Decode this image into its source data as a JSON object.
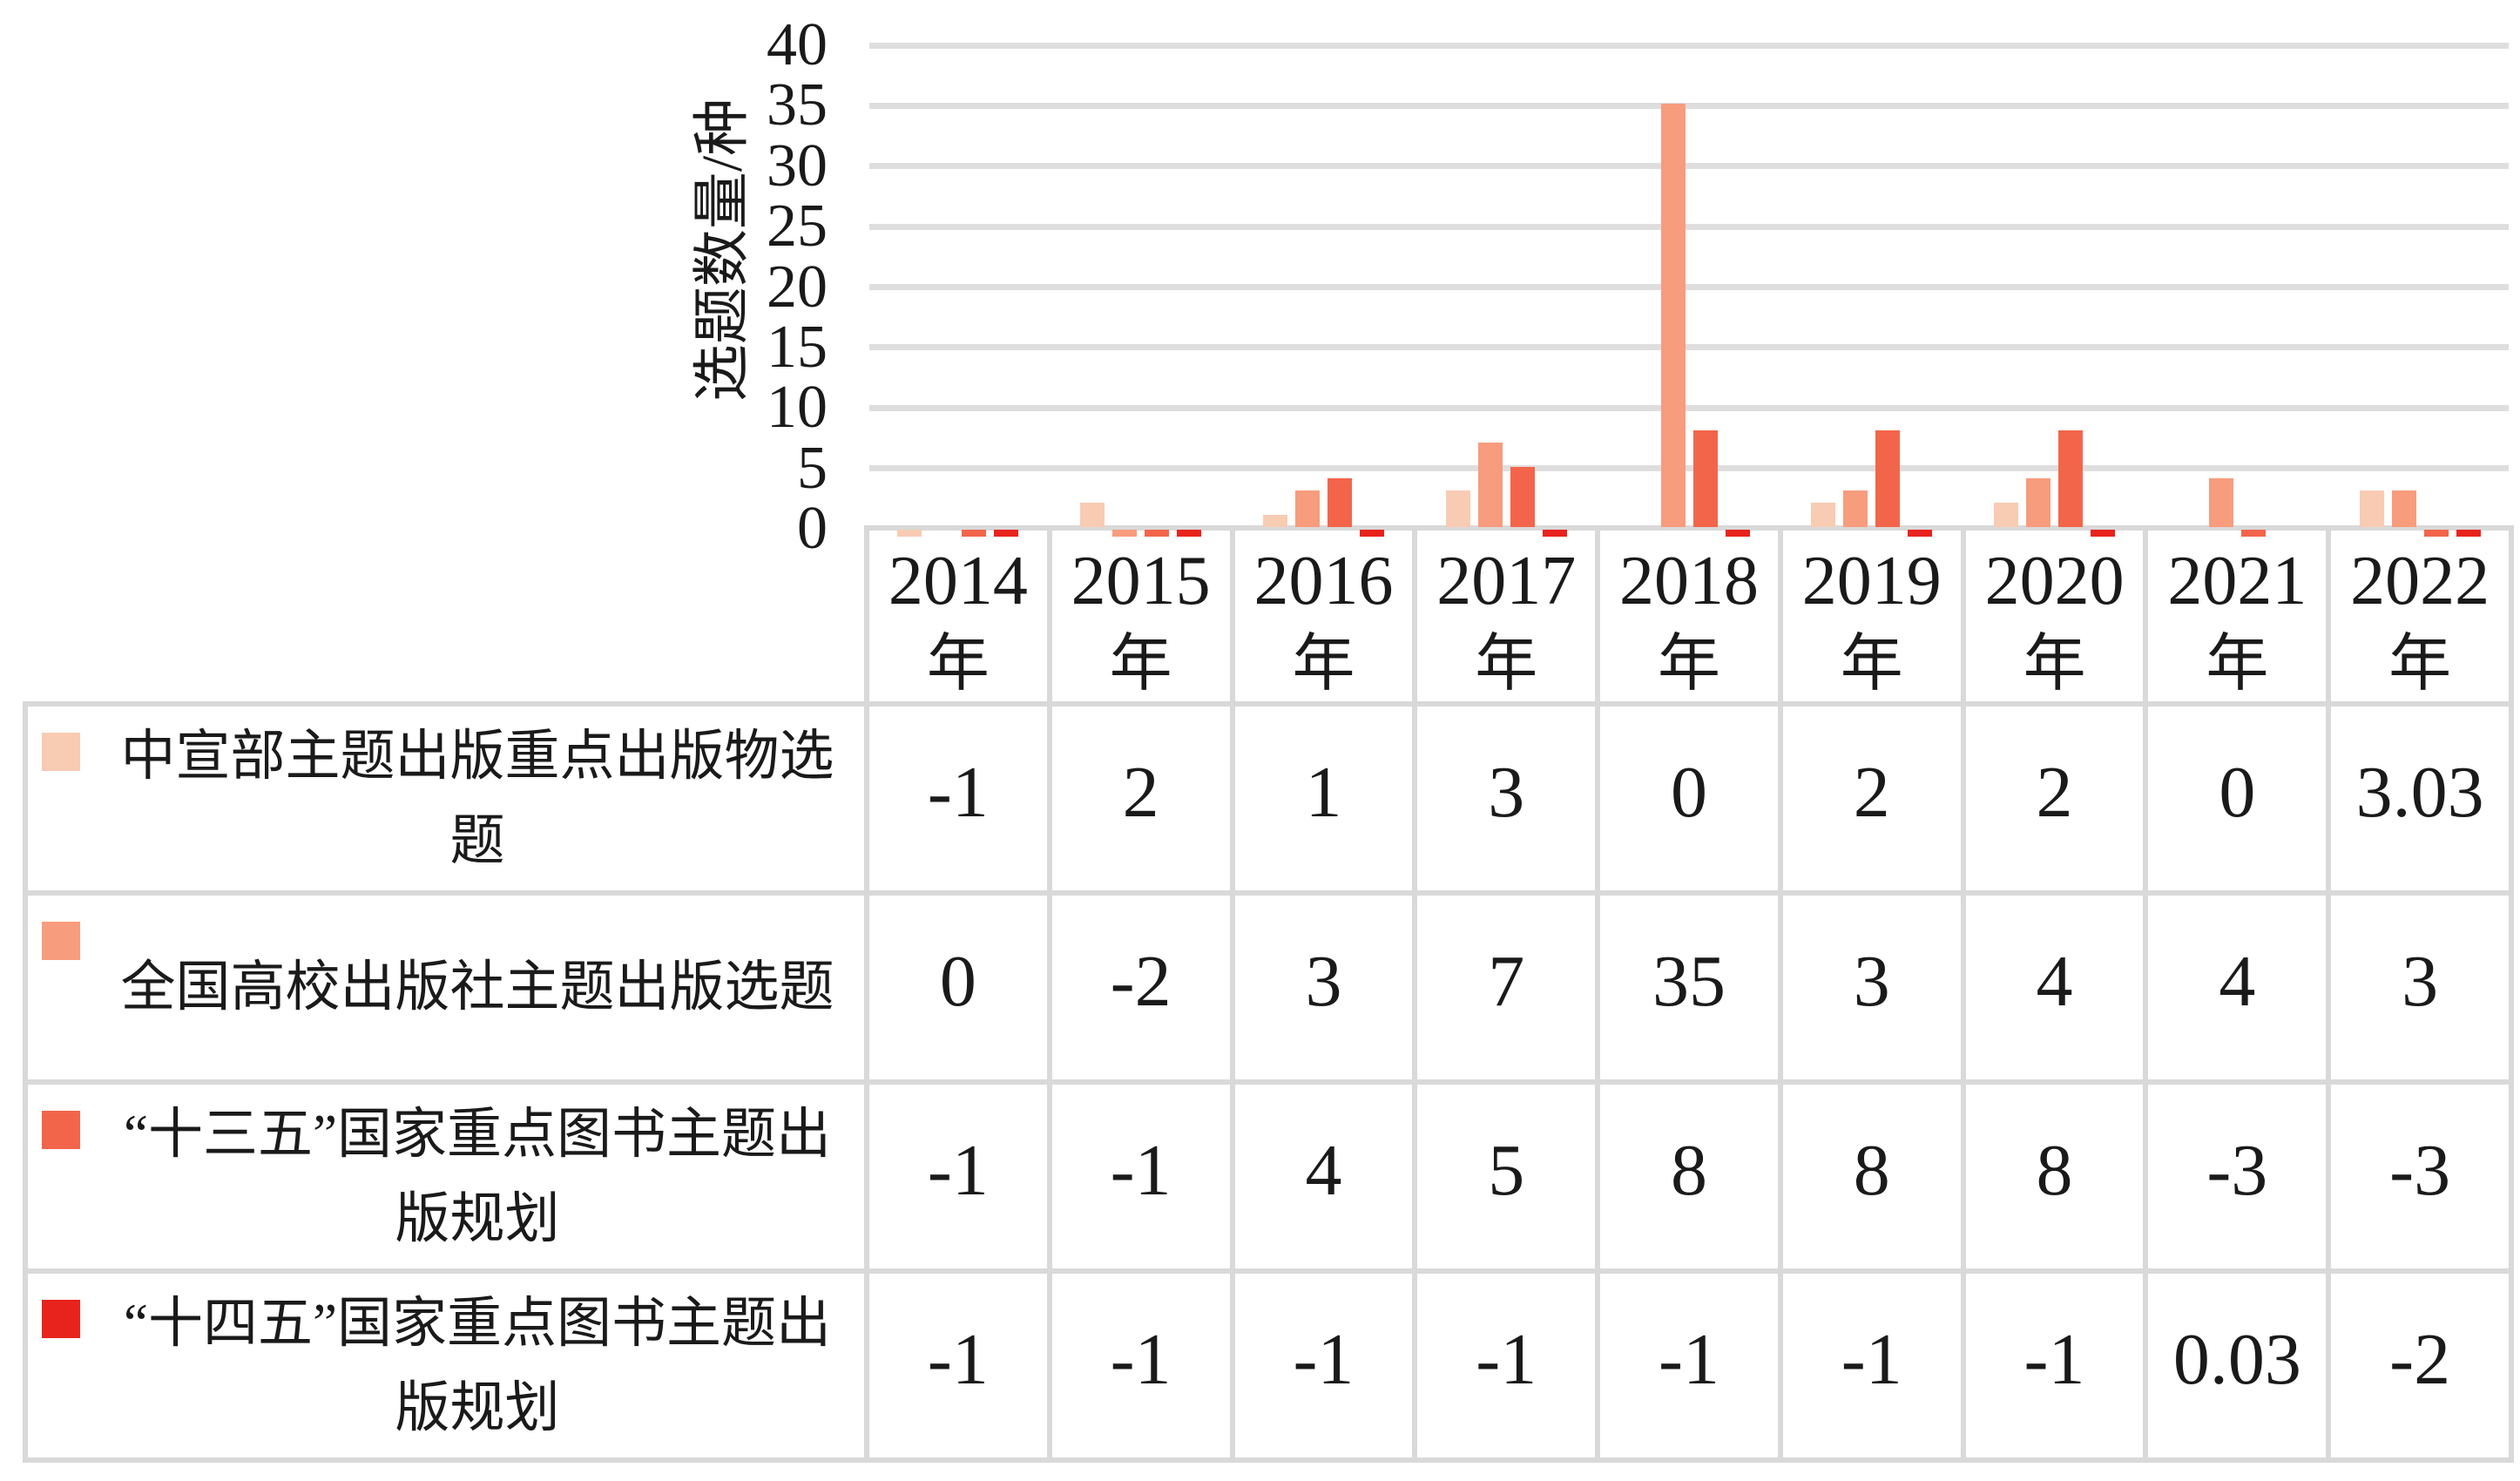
{
  "chart_data": {
    "type": "bar",
    "title": "",
    "ylabel": "选题数量/种",
    "xlabel": "",
    "ylim": [
      0,
      40
    ],
    "yticks": [
      0,
      5,
      10,
      15,
      20,
      25,
      30,
      35,
      40
    ],
    "grid": true,
    "legend_position": "table-left",
    "categories": [
      "2014年",
      "2015年",
      "2016年",
      "2017年",
      "2018年",
      "2019年",
      "2020年",
      "2021年",
      "2022年"
    ],
    "category_unit_char": "年",
    "series": [
      {
        "name": "中宣部主题出版重点出版物选题",
        "color": "#F8CBB3",
        "values": [
          -1,
          2,
          1,
          3,
          0,
          2,
          2,
          0,
          3.03
        ]
      },
      {
        "name": "全国高校出版社主题出版选题",
        "color": "#F79C7D",
        "values": [
          0,
          -2,
          3,
          7,
          35,
          3,
          4,
          4,
          3
        ]
      },
      {
        "name": "“十三五”国家重点图书主题出版规划",
        "color": "#F2654B",
        "values": [
          -1,
          -1,
          4,
          5,
          8,
          8,
          8,
          -3,
          -3
        ]
      },
      {
        "name": "“十四五”国家重点图书主题出版规划",
        "color": "#E8231D",
        "values": [
          -1,
          -1,
          -1,
          -1,
          -1,
          -1,
          -1,
          0.03,
          -2
        ]
      }
    ]
  },
  "colors": {
    "background": "#FFFFFF",
    "gridline": "#DEDEDE",
    "table_border": "#D9D9D9",
    "text": "#1A1A1A"
  }
}
